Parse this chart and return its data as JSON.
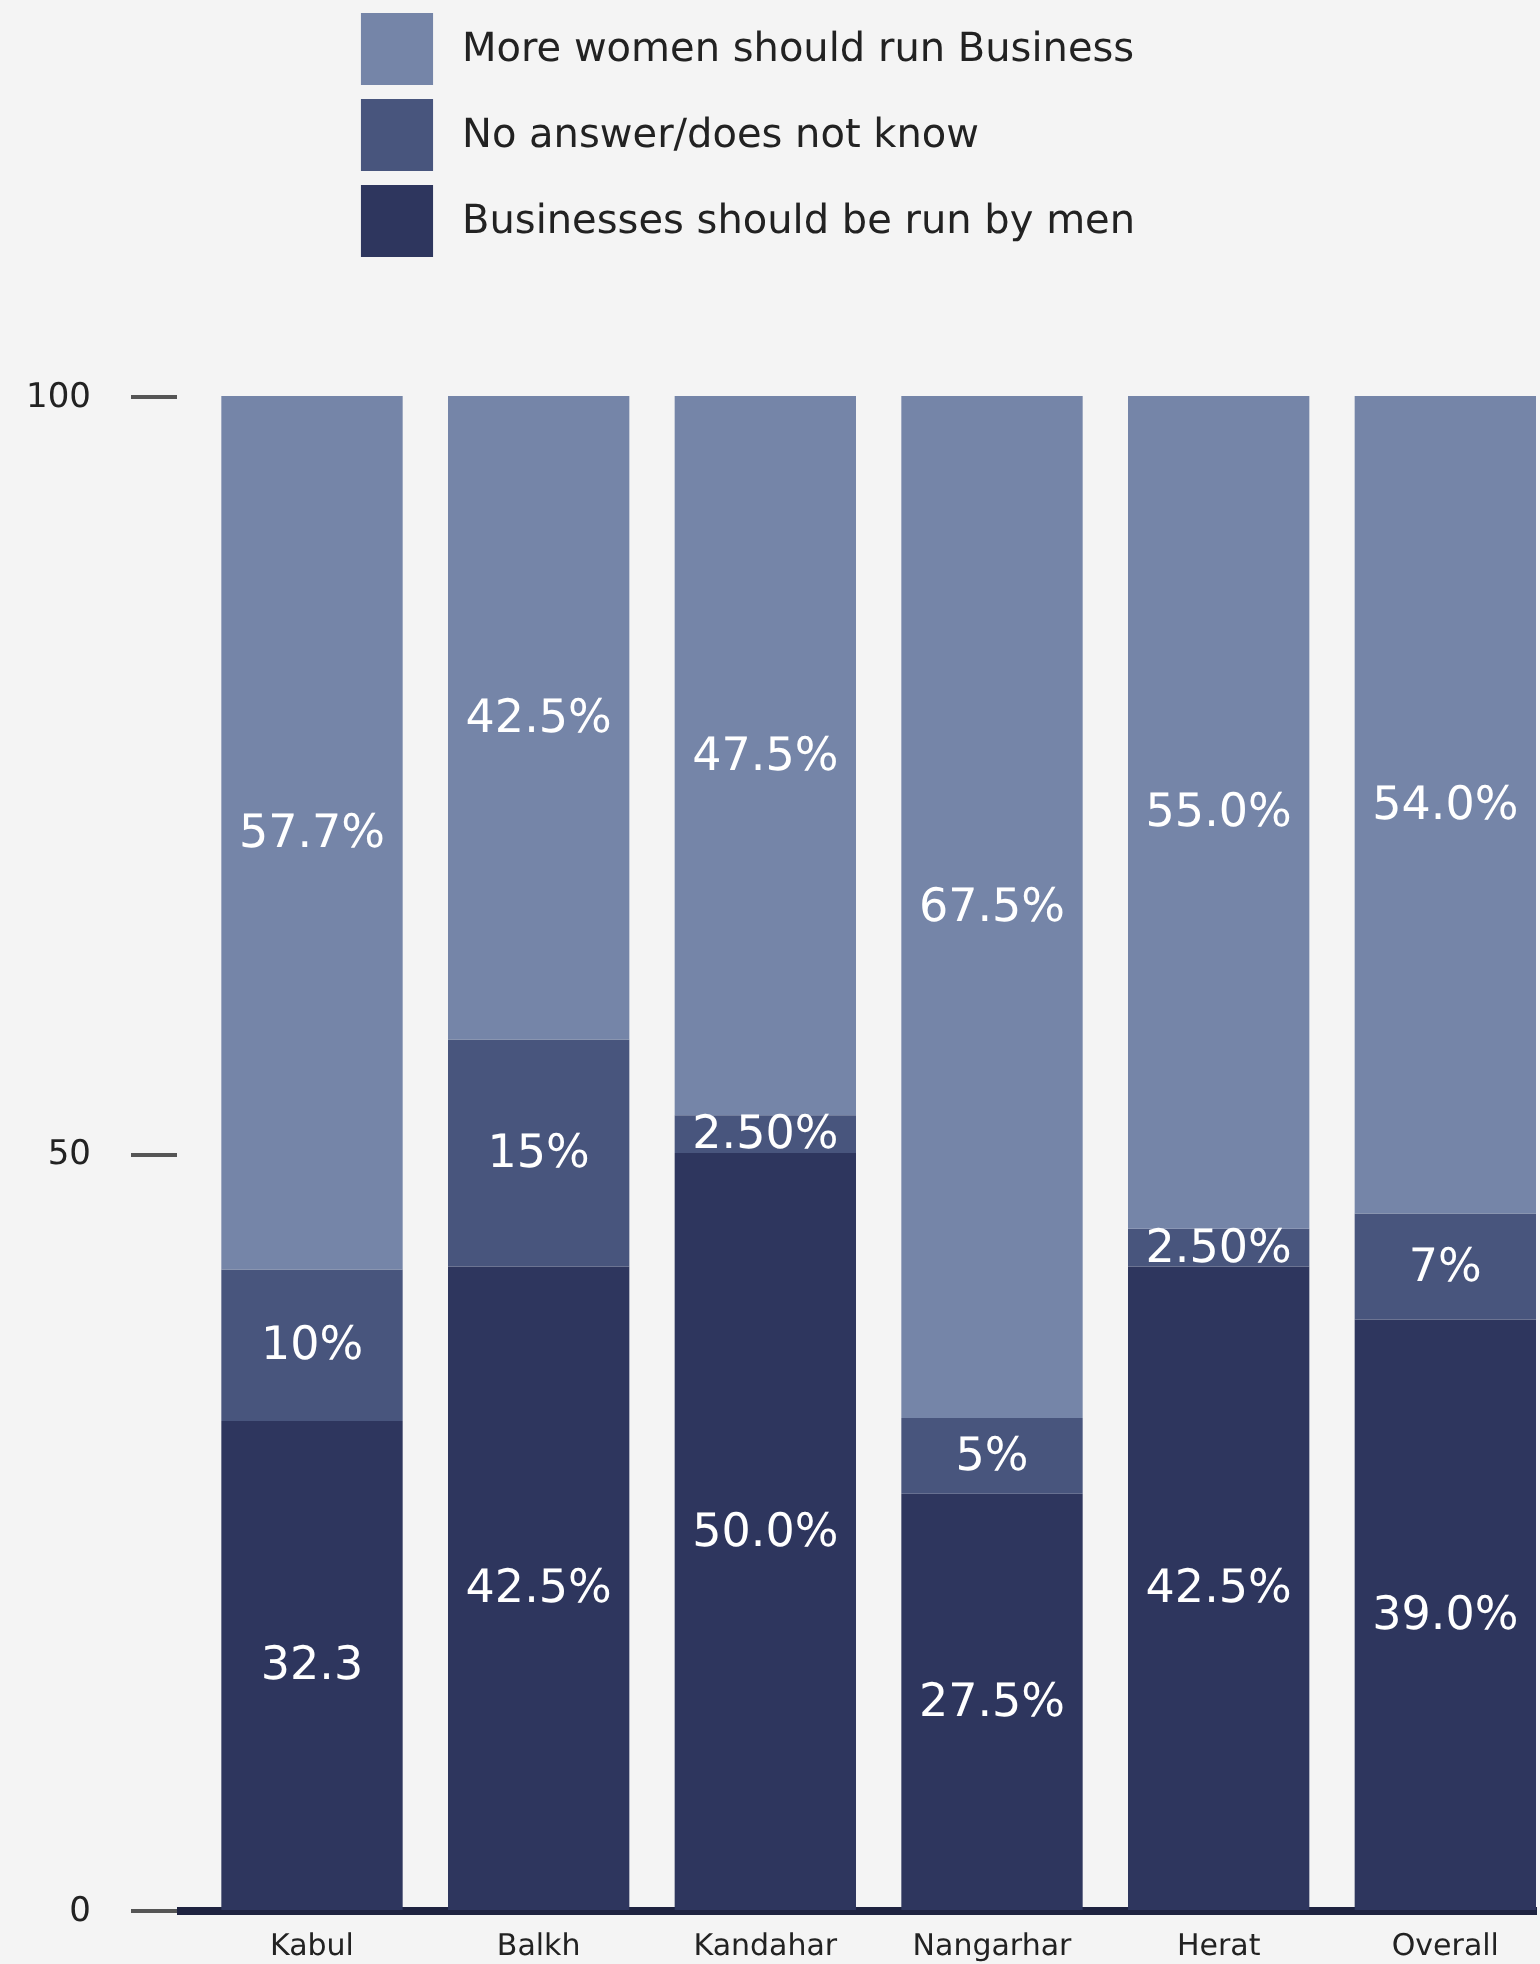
{
  "chart_data": {
    "type": "bar",
    "stacked": true,
    "categories": [
      "Kabul",
      "Balkh",
      "Kandahar",
      "Nangarhar",
      "Herat",
      "Overall"
    ],
    "series": [
      {
        "name": "Businesses should be run by men",
        "color": "#2e365e",
        "values": [
          32.3,
          42.5,
          50.0,
          27.5,
          42.5,
          39.0
        ],
        "value_labels": [
          "32.3",
          "42.5%",
          "50.0%",
          "27.5%",
          "42.5%",
          "39.0%"
        ]
      },
      {
        "name": "No answer/does not know",
        "color": "#48557d",
        "values": [
          10,
          15,
          2.5,
          5,
          2.5,
          7
        ],
        "value_labels": [
          "10%",
          "15%",
          "2.50%",
          "5%",
          "2.50%",
          "7%"
        ]
      },
      {
        "name": "More women should run Business",
        "color": "#7585a8",
        "values": [
          57.7,
          42.5,
          47.5,
          67.5,
          55.0,
          54.0
        ],
        "value_labels": [
          "57.7%",
          "42.5%",
          "47.5%",
          "67.5%",
          "55.0%",
          "54.0%"
        ]
      }
    ],
    "ylim": [
      0,
      100
    ],
    "yticks": [
      0,
      50,
      100
    ],
    "legend": "top",
    "grid": false
  }
}
